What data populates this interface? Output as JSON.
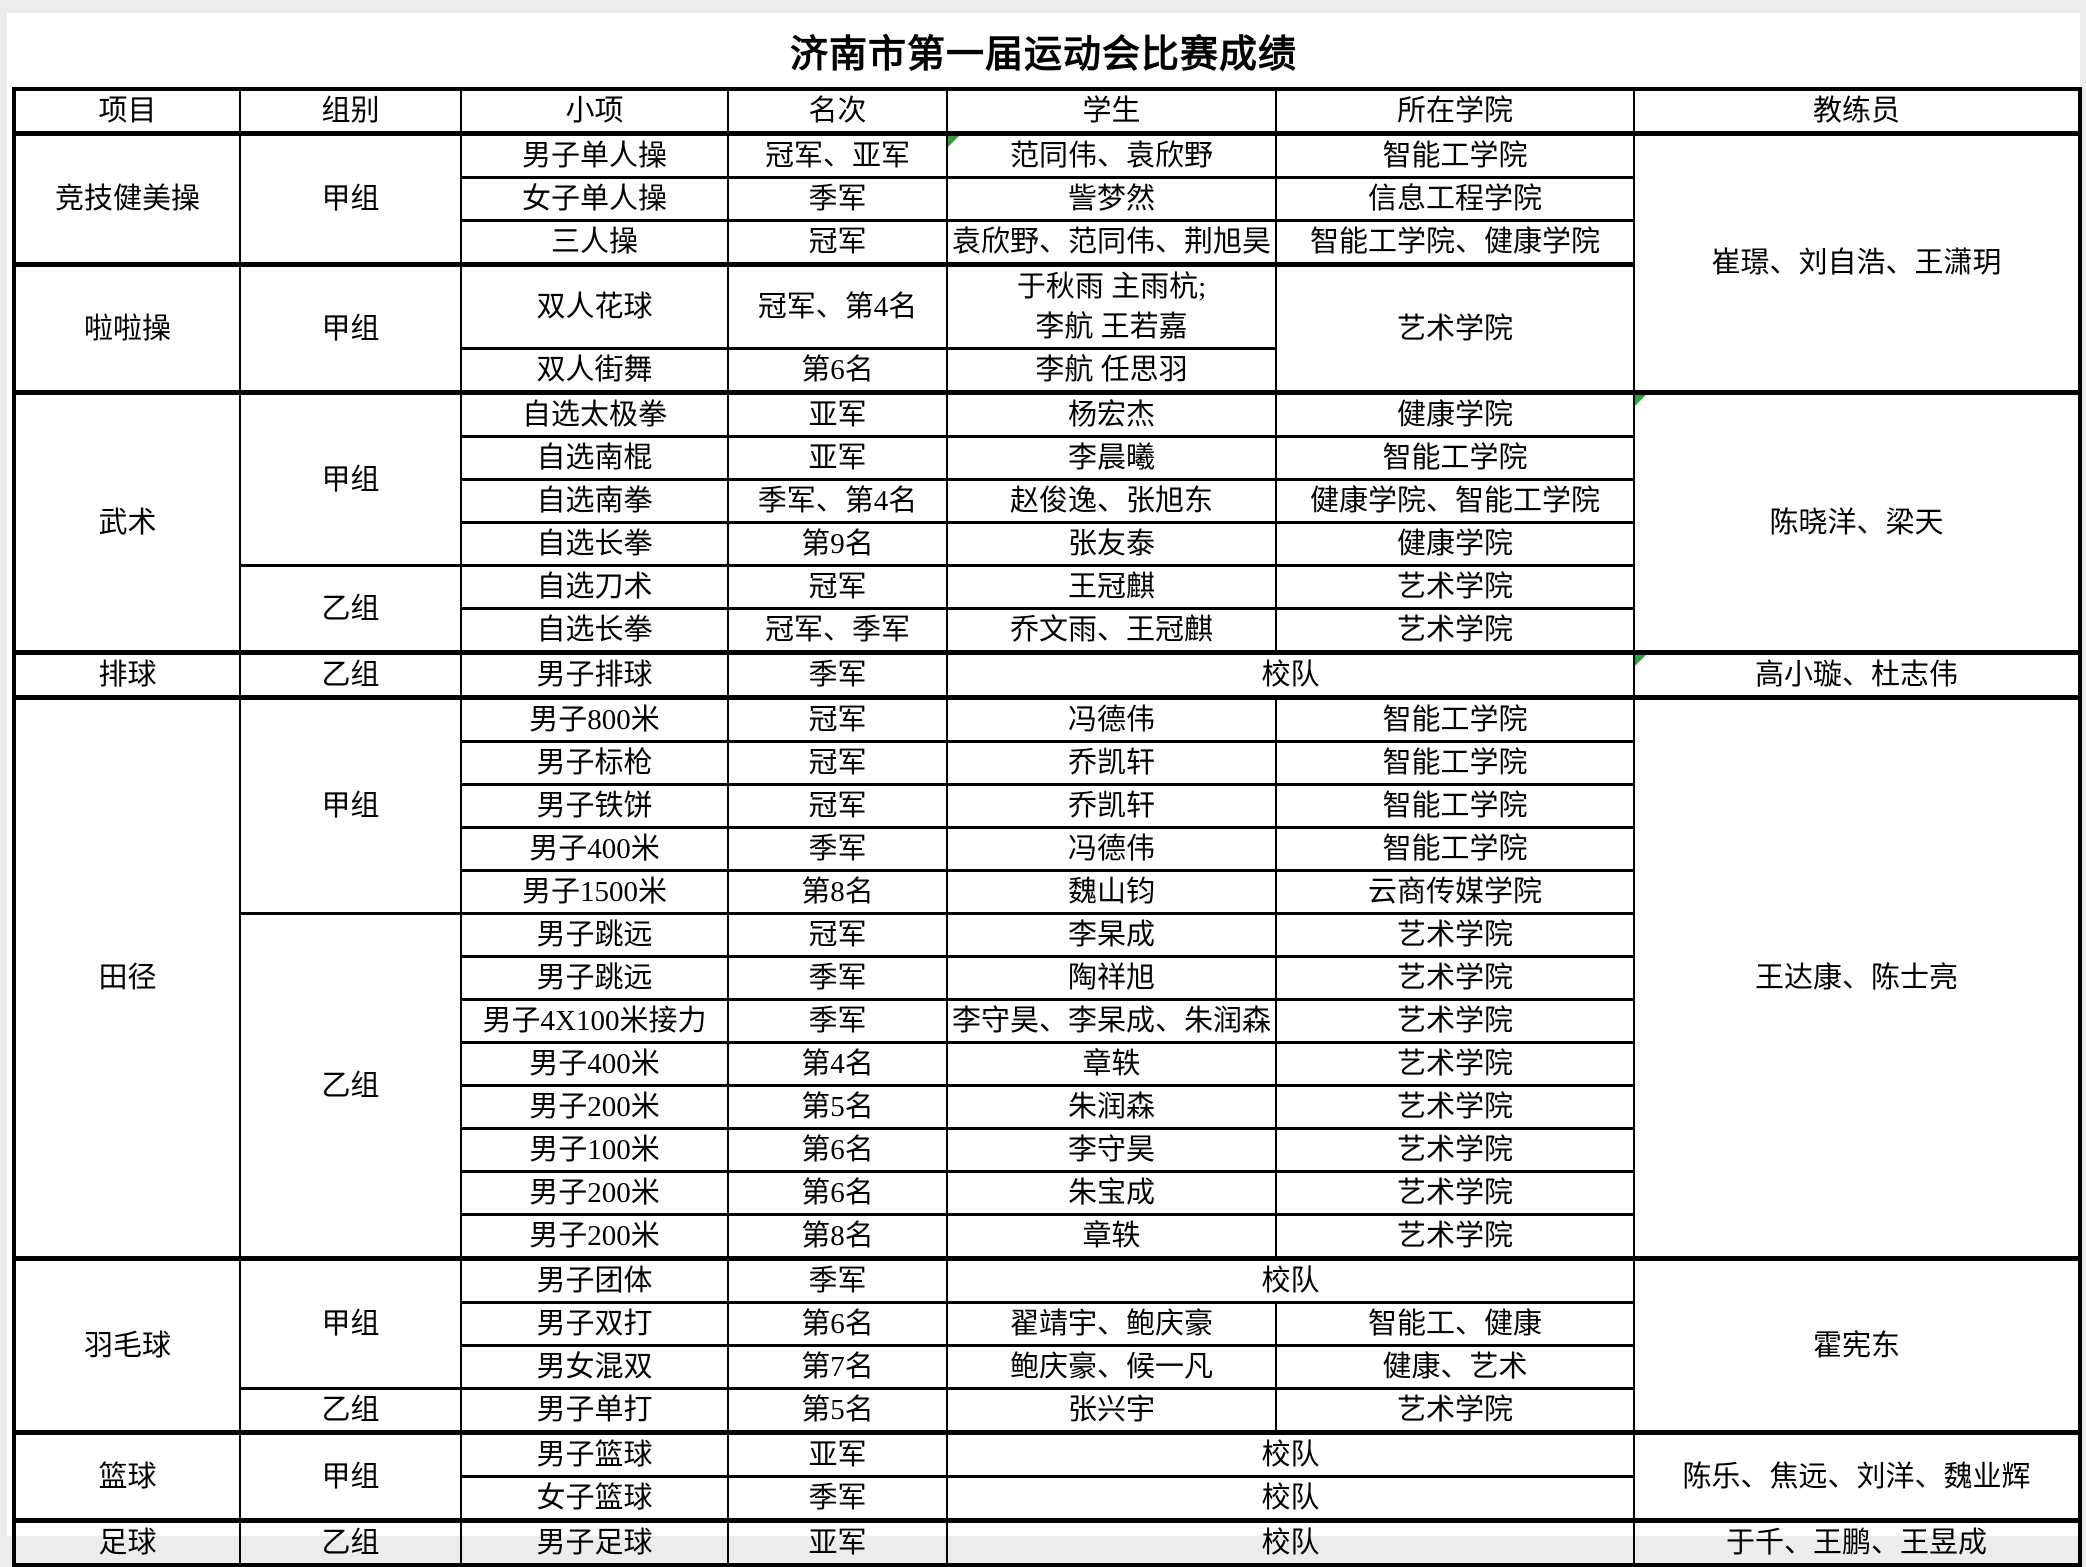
{
  "title": "济南市第一届运动会比赛成绩",
  "columns": [
    {
      "key": "event",
      "label": "项目"
    },
    {
      "key": "group",
      "label": "组别"
    },
    {
      "key": "subevent",
      "label": "小项"
    },
    {
      "key": "rank",
      "label": "名次"
    },
    {
      "key": "student",
      "label": "学生"
    },
    {
      "key": "college",
      "label": "所在学院"
    },
    {
      "key": "coach",
      "label": "教练员"
    }
  ],
  "marker_color": "#2da13c",
  "rows": [
    {
      "sec": true,
      "cells": [
        {
          "t": "竞技健美操",
          "rs": 3
        },
        {
          "t": "甲组",
          "rs": 3
        },
        {
          "t": "男子单人操"
        },
        {
          "t": "冠军、亚军"
        },
        {
          "t": "范同伟、袁欣野",
          "flag": true
        },
        {
          "t": "智能工学院"
        },
        {
          "t": "崔璟、刘自浩、王潇玥",
          "rs": 5
        }
      ]
    },
    {
      "cells": [
        {
          "t": "女子单人操"
        },
        {
          "t": "季军"
        },
        {
          "t": "訾梦然"
        },
        {
          "t": "信息工程学院"
        }
      ]
    },
    {
      "cells": [
        {
          "t": "三人操"
        },
        {
          "t": "冠军"
        },
        {
          "t": "袁欣野、范同伟、荆旭昊"
        },
        {
          "t": "智能工学院、健康学院"
        }
      ]
    },
    {
      "sec": true,
      "cells": [
        {
          "t": "啦啦操",
          "rs": 2
        },
        {
          "t": "甲组",
          "rs": 2
        },
        {
          "t": "双人花球"
        },
        {
          "t": "冠军、第4名"
        },
        {
          "t": "于秋雨 主雨杭;\n李航 王若嘉"
        },
        {
          "t": "艺术学院",
          "rs": 2
        }
      ]
    },
    {
      "cells": [
        {
          "t": "双人街舞"
        },
        {
          "t": "第6名"
        },
        {
          "t": "李航 任思羽"
        }
      ]
    },
    {
      "sec": true,
      "cells": [
        {
          "t": "武术",
          "rs": 6
        },
        {
          "t": "甲组",
          "rs": 4
        },
        {
          "t": "自选太极拳"
        },
        {
          "t": "亚军"
        },
        {
          "t": "杨宏杰"
        },
        {
          "t": "健康学院"
        },
        {
          "t": "陈晓洋、梁天",
          "rs": 6,
          "flag": true
        }
      ]
    },
    {
      "cells": [
        {
          "t": "自选南棍"
        },
        {
          "t": "亚军"
        },
        {
          "t": "李晨曦"
        },
        {
          "t": "智能工学院"
        }
      ]
    },
    {
      "cells": [
        {
          "t": "自选南拳"
        },
        {
          "t": "季军、第4名"
        },
        {
          "t": "赵俊逸、张旭东"
        },
        {
          "t": "健康学院、智能工学院"
        }
      ]
    },
    {
      "cells": [
        {
          "t": "自选长拳"
        },
        {
          "t": "第9名"
        },
        {
          "t": "张友泰"
        },
        {
          "t": "健康学院"
        }
      ]
    },
    {
      "cells": [
        {
          "t": "乙组",
          "rs": 2
        },
        {
          "t": "自选刀术"
        },
        {
          "t": "冠军"
        },
        {
          "t": "王冠麒"
        },
        {
          "t": "艺术学院"
        }
      ]
    },
    {
      "cells": [
        {
          "t": "自选长拳"
        },
        {
          "t": "冠军、季军"
        },
        {
          "t": "乔文雨、王冠麒"
        },
        {
          "t": "艺术学院"
        }
      ]
    },
    {
      "sec": true,
      "cells": [
        {
          "t": "排球"
        },
        {
          "t": "乙组"
        },
        {
          "t": "男子排球"
        },
        {
          "t": "季军"
        },
        {
          "t": "校队",
          "cs": 2
        },
        {
          "t": "高小璇、杜志伟",
          "flag": true
        }
      ]
    },
    {
      "sec": true,
      "cells": [
        {
          "t": "田径",
          "rs": 13
        },
        {
          "t": "甲组",
          "rs": 5
        },
        {
          "t": "男子800米"
        },
        {
          "t": "冠军"
        },
        {
          "t": "冯德伟"
        },
        {
          "t": "智能工学院"
        },
        {
          "t": "王达康、陈士亮",
          "rs": 13
        }
      ]
    },
    {
      "cells": [
        {
          "t": "男子标枪"
        },
        {
          "t": "冠军"
        },
        {
          "t": "乔凯轩"
        },
        {
          "t": "智能工学院"
        }
      ]
    },
    {
      "cells": [
        {
          "t": "男子铁饼"
        },
        {
          "t": "冠军"
        },
        {
          "t": "乔凯轩"
        },
        {
          "t": "智能工学院"
        }
      ]
    },
    {
      "cells": [
        {
          "t": "男子400米"
        },
        {
          "t": "季军"
        },
        {
          "t": "冯德伟"
        },
        {
          "t": "智能工学院"
        }
      ]
    },
    {
      "cells": [
        {
          "t": "男子1500米"
        },
        {
          "t": "第8名"
        },
        {
          "t": "魏山钧"
        },
        {
          "t": "云商传媒学院"
        }
      ]
    },
    {
      "cells": [
        {
          "t": "乙组",
          "rs": 8
        },
        {
          "t": "男子跳远"
        },
        {
          "t": "冠军"
        },
        {
          "t": "李杲成"
        },
        {
          "t": "艺术学院"
        }
      ]
    },
    {
      "cells": [
        {
          "t": "男子跳远"
        },
        {
          "t": "季军"
        },
        {
          "t": "陶祥旭"
        },
        {
          "t": "艺术学院"
        }
      ]
    },
    {
      "cells": [
        {
          "t": "男子4X100米接力"
        },
        {
          "t": "季军"
        },
        {
          "t": "李守昊、李杲成、朱润森"
        },
        {
          "t": "艺术学院"
        }
      ]
    },
    {
      "cells": [
        {
          "t": "男子400米"
        },
        {
          "t": "第4名"
        },
        {
          "t": "章轶"
        },
        {
          "t": "艺术学院"
        }
      ]
    },
    {
      "cells": [
        {
          "t": "男子200米"
        },
        {
          "t": "第5名"
        },
        {
          "t": "朱润森"
        },
        {
          "t": "艺术学院"
        }
      ]
    },
    {
      "cells": [
        {
          "t": "男子100米"
        },
        {
          "t": "第6名"
        },
        {
          "t": "李守昊"
        },
        {
          "t": "艺术学院"
        }
      ]
    },
    {
      "cells": [
        {
          "t": "男子200米"
        },
        {
          "t": "第6名"
        },
        {
          "t": "朱宝成"
        },
        {
          "t": "艺术学院"
        }
      ]
    },
    {
      "cells": [
        {
          "t": "男子200米"
        },
        {
          "t": "第8名"
        },
        {
          "t": "章轶"
        },
        {
          "t": "艺术学院"
        }
      ]
    },
    {
      "sec": true,
      "cells": [
        {
          "t": "羽毛球",
          "rs": 4
        },
        {
          "t": "甲组",
          "rs": 3
        },
        {
          "t": "男子团体"
        },
        {
          "t": "季军"
        },
        {
          "t": "校队",
          "cs": 2
        },
        {
          "t": "霍宪东",
          "rs": 4
        }
      ]
    },
    {
      "cells": [
        {
          "t": "男子双打"
        },
        {
          "t": "第6名"
        },
        {
          "t": "翟靖宇、鲍庆豪"
        },
        {
          "t": "智能工、健康"
        }
      ]
    },
    {
      "cells": [
        {
          "t": "男女混双"
        },
        {
          "t": "第7名"
        },
        {
          "t": "鲍庆豪、候一凡"
        },
        {
          "t": "健康、艺术"
        }
      ]
    },
    {
      "cells": [
        {
          "t": "乙组"
        },
        {
          "t": "男子单打"
        },
        {
          "t": "第5名"
        },
        {
          "t": "张兴宇"
        },
        {
          "t": "艺术学院"
        }
      ]
    },
    {
      "sec": true,
      "cells": [
        {
          "t": "篮球",
          "rs": 2
        },
        {
          "t": "甲组",
          "rs": 2
        },
        {
          "t": "男子篮球"
        },
        {
          "t": "亚军"
        },
        {
          "t": "校队",
          "cs": 2
        },
        {
          "t": "陈乐、焦远、刘洋、魏业辉",
          "rs": 2
        }
      ]
    },
    {
      "cells": [
        {
          "t": "女子篮球"
        },
        {
          "t": "季军"
        },
        {
          "t": "校队",
          "cs": 2
        }
      ]
    },
    {
      "sec": true,
      "cells": [
        {
          "t": "足球"
        },
        {
          "t": "乙组"
        },
        {
          "t": "男子足球"
        },
        {
          "t": "亚军"
        },
        {
          "t": "校队",
          "cs": 2
        },
        {
          "t": "于千、王鹏、王昱成"
        }
      ]
    }
  ]
}
